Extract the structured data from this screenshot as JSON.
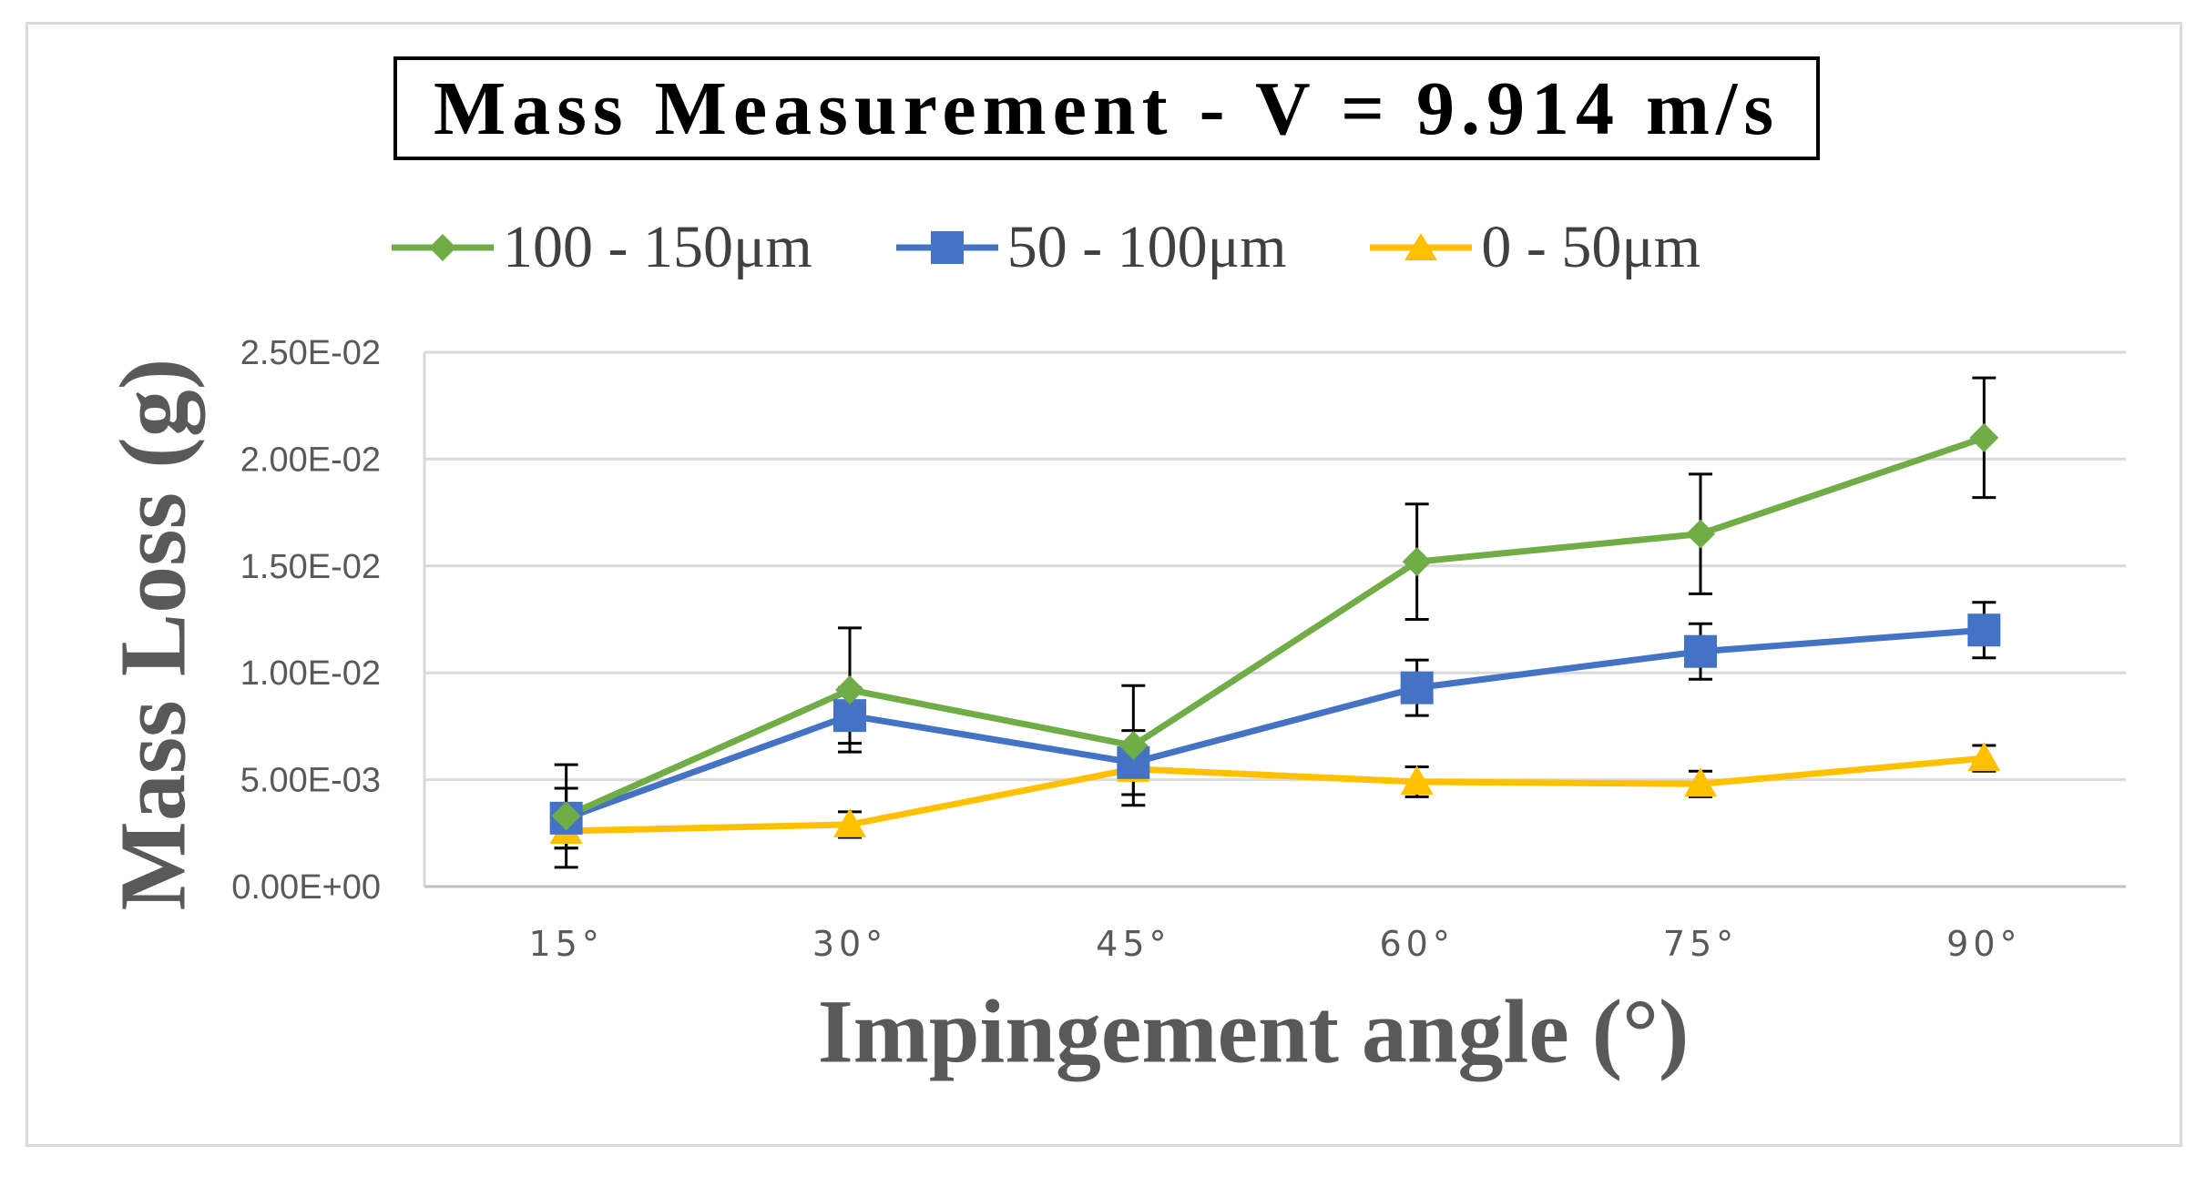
{
  "chart_data": {
    "type": "line",
    "title": "Mass Measurement  - V = 9.914 m/s",
    "xlabel": "Impingement angle (°)",
    "ylabel": "Mass Loss (g)",
    "categories": [
      "15°",
      "30°",
      "45°",
      "60°",
      "75°",
      "90°"
    ],
    "ylim": [
      0,
      0.025
    ],
    "yticks": [
      0,
      0.005,
      0.01,
      0.015,
      0.02,
      0.025
    ],
    "ytick_labels": [
      "0.00E+00",
      "5.00E-03",
      "1.00E-02",
      "1.50E-02",
      "2.00E-02",
      "2.50E-02"
    ],
    "grid": true,
    "legend_position": "top",
    "series": [
      {
        "name": "100 - 150μm",
        "color": "#70ad47",
        "marker": "diamond",
        "values": [
          0.0033,
          0.0092,
          0.0066,
          0.0152,
          0.0165,
          0.021
        ],
        "error": [
          0.0024,
          0.0029,
          0.0028,
          0.0027,
          0.0028,
          0.0028
        ]
      },
      {
        "name": "50 - 100μm",
        "color": "#4472c4",
        "marker": "square",
        "values": [
          0.0032,
          0.008,
          0.0058,
          0.0093,
          0.011,
          0.012
        ],
        "error": [
          0.0014,
          0.0013,
          0.0015,
          0.0013,
          0.0013,
          0.0013
        ]
      },
      {
        "name": "0 - 50μm",
        "color": "#ffc000",
        "marker": "triangle",
        "values": [
          0.0026,
          0.0029,
          0.0055,
          0.0049,
          0.0048,
          0.006
        ],
        "error": [
          0.0008,
          0.0006,
          0.0005,
          0.0007,
          0.0006,
          0.0006
        ]
      }
    ]
  }
}
